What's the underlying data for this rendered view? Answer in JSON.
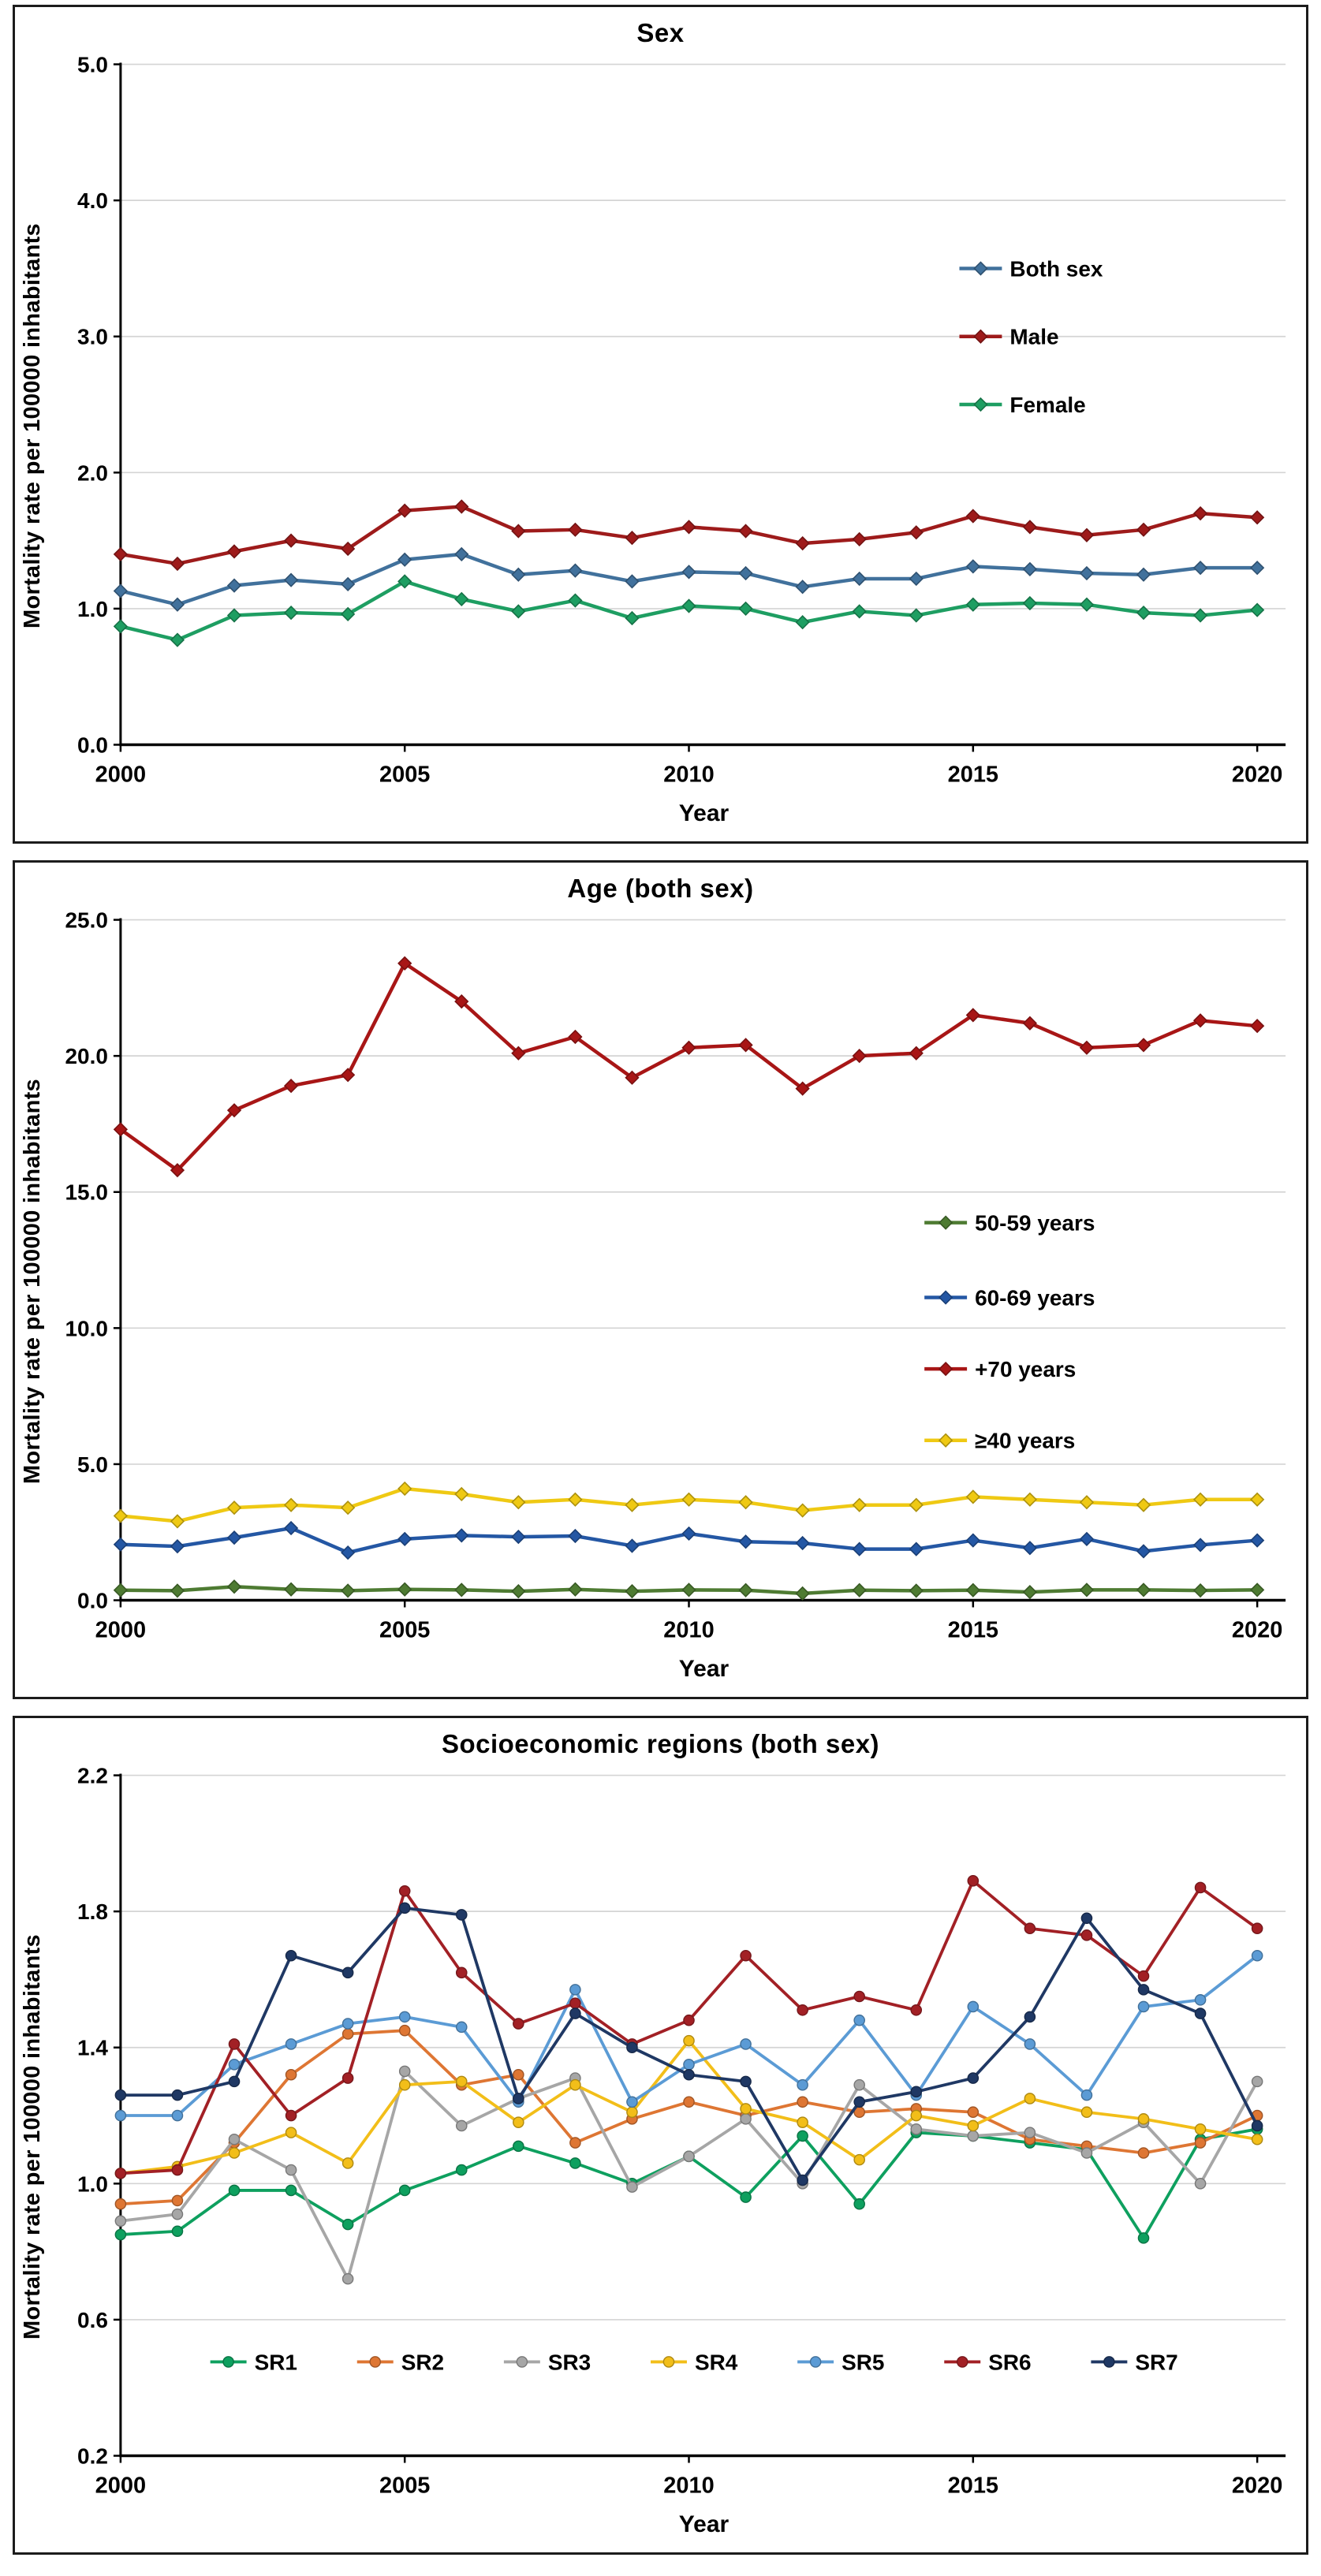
{
  "y_axis_label": "Mortality rate per 100000 inhabitants",
  "x_axis_label": "Year",
  "years": [
    2000,
    2001,
    2002,
    2003,
    2004,
    2005,
    2006,
    2007,
    2008,
    2009,
    2010,
    2011,
    2012,
    2013,
    2014,
    2015,
    2016,
    2017,
    2018,
    2019,
    2020
  ],
  "x_ticks": [
    {
      "v": 2000,
      "label": "2000"
    },
    {
      "v": 2005,
      "label": "2005"
    },
    {
      "v": 2010,
      "label": "2010"
    },
    {
      "v": 2015,
      "label": "2015"
    },
    {
      "v": 2020,
      "label": "2020"
    }
  ],
  "chart_data": [
    {
      "type": "line",
      "title": "Sex",
      "xlabel": "Year",
      "ylabel": "Mortality rate per 100000 inhabitants",
      "ylim": [
        0,
        5
      ],
      "grid": "horizontal",
      "legend_position": "inside-right",
      "y_ticks": [
        {
          "v": 0,
          "label": "0.0"
        },
        {
          "v": 1,
          "label": "1.0"
        },
        {
          "v": 2,
          "label": "2.0"
        },
        {
          "v": 3,
          "label": "3.0"
        },
        {
          "v": 4,
          "label": "4.0"
        },
        {
          "v": 5,
          "label": "5.0"
        }
      ],
      "series": [
        {
          "name": "Both sex",
          "color": "#41719C",
          "values": [
            1.13,
            1.03,
            1.17,
            1.21,
            1.18,
            1.36,
            1.4,
            1.25,
            1.28,
            1.2,
            1.27,
            1.26,
            1.16,
            1.22,
            1.22,
            1.31,
            1.29,
            1.26,
            1.25,
            1.3,
            1.3
          ]
        },
        {
          "name": "Male",
          "color": "#9E1B1B",
          "values": [
            1.4,
            1.33,
            1.42,
            1.5,
            1.44,
            1.72,
            1.75,
            1.57,
            1.58,
            1.52,
            1.6,
            1.57,
            1.48,
            1.51,
            1.56,
            1.68,
            1.6,
            1.54,
            1.58,
            1.7,
            1.67
          ]
        },
        {
          "name": "Female",
          "color": "#1E9E62",
          "values": [
            0.87,
            0.77,
            0.95,
            0.97,
            0.96,
            1.2,
            1.07,
            0.98,
            1.06,
            0.93,
            1.02,
            1.0,
            0.9,
            0.98,
            0.95,
            1.03,
            1.04,
            1.03,
            0.97,
            0.95,
            0.99
          ]
        }
      ]
    },
    {
      "type": "line",
      "title": "Age (both sex)",
      "xlabel": "Year",
      "ylabel": "Mortality rate per 100000 inhabitants",
      "ylim": [
        0,
        25
      ],
      "grid": "horizontal",
      "legend_position": "inside-right",
      "y_ticks": [
        {
          "v": 0,
          "label": "0.0"
        },
        {
          "v": 5,
          "label": "5.0"
        },
        {
          "v": 10,
          "label": "10.0"
        },
        {
          "v": 15,
          "label": "15.0"
        },
        {
          "v": 20,
          "label": "20.0"
        },
        {
          "v": 25,
          "label": "25.0"
        }
      ],
      "series": [
        {
          "name": "50-59 years",
          "color": "#4E7B32",
          "values": [
            0.37,
            0.35,
            0.5,
            0.4,
            0.35,
            0.4,
            0.38,
            0.33,
            0.4,
            0.33,
            0.38,
            0.37,
            0.25,
            0.37,
            0.35,
            0.37,
            0.3,
            0.38,
            0.38,
            0.36,
            0.38
          ]
        },
        {
          "name": "60-69 years",
          "color": "#2457A4",
          "values": [
            2.05,
            1.98,
            2.3,
            2.65,
            1.75,
            2.25,
            2.38,
            2.33,
            2.36,
            2.0,
            2.45,
            2.15,
            2.1,
            1.88,
            1.88,
            2.2,
            1.92,
            2.25,
            1.8,
            2.03,
            2.2
          ]
        },
        {
          "name": "+70 years",
          "color": "#A81616",
          "values": [
            17.3,
            15.8,
            18.0,
            18.9,
            19.3,
            23.4,
            22.0,
            20.1,
            20.7,
            19.2,
            20.3,
            20.4,
            18.8,
            20.0,
            20.1,
            21.5,
            21.2,
            20.3,
            20.4,
            21.3,
            21.1
          ]
        },
        {
          "name": "≥40 years",
          "color": "#EFC913",
          "values": [
            3.1,
            2.9,
            3.4,
            3.5,
            3.4,
            4.1,
            3.9,
            3.6,
            3.7,
            3.5,
            3.7,
            3.6,
            3.3,
            3.5,
            3.5,
            3.8,
            3.7,
            3.6,
            3.5,
            3.7,
            3.7
          ]
        }
      ]
    },
    {
      "type": "line",
      "title": "Socioeconomic regions (both sex)",
      "xlabel": "Year",
      "ylabel": "Mortality rate per 100000 inhabitants",
      "ylim": [
        0.2,
        2.2
      ],
      "grid": "horizontal",
      "legend_position": "inside-bottom",
      "y_ticks": [
        {
          "v": 0.2,
          "label": "0.2"
        },
        {
          "v": 0.6,
          "label": "0.6"
        },
        {
          "v": 1.0,
          "label": "1.0"
        },
        {
          "v": 1.4,
          "label": "1.4"
        },
        {
          "v": 1.8,
          "label": "1.8"
        },
        {
          "v": 2.2,
          "label": "2.2"
        }
      ],
      "series": [
        {
          "name": "SR1",
          "color": "#0EA05F",
          "values": [
            0.85,
            0.86,
            0.98,
            0.98,
            0.88,
            0.98,
            1.04,
            1.11,
            1.06,
            1.0,
            1.08,
            0.96,
            1.14,
            0.94,
            1.15,
            1.14,
            1.12,
            1.1,
            0.84,
            1.13,
            1.16
          ]
        },
        {
          "name": "SR2",
          "color": "#DE7633",
          "values": [
            0.94,
            0.95,
            1.12,
            1.32,
            1.44,
            1.45,
            1.29,
            1.32,
            1.12,
            1.19,
            1.24,
            1.2,
            1.24,
            1.21,
            1.22,
            1.21,
            1.13,
            1.11,
            1.09,
            1.12,
            1.2
          ]
        },
        {
          "name": "SR3",
          "color": "#A6A6A6",
          "values": [
            0.89,
            0.91,
            1.13,
            1.04,
            0.72,
            1.33,
            1.17,
            1.25,
            1.31,
            0.99,
            1.08,
            1.19,
            1.0,
            1.29,
            1.16,
            1.14,
            1.15,
            1.09,
            1.18,
            1.0,
            1.3
          ]
        },
        {
          "name": "SR4",
          "color": "#F2BE19",
          "values": [
            1.03,
            1.05,
            1.09,
            1.15,
            1.06,
            1.29,
            1.3,
            1.18,
            1.29,
            1.21,
            1.42,
            1.22,
            1.18,
            1.07,
            1.2,
            1.17,
            1.25,
            1.21,
            1.19,
            1.16,
            1.13
          ]
        },
        {
          "name": "SR5",
          "color": "#5B9BD5",
          "values": [
            1.2,
            1.2,
            1.35,
            1.41,
            1.47,
            1.49,
            1.46,
            1.24,
            1.57,
            1.24,
            1.35,
            1.41,
            1.29,
            1.48,
            1.26,
            1.52,
            1.41,
            1.26,
            1.52,
            1.54,
            1.67
          ]
        },
        {
          "name": "SR6",
          "color": "#A22025",
          "values": [
            1.03,
            1.04,
            1.41,
            1.2,
            1.31,
            1.86,
            1.62,
            1.47,
            1.53,
            1.41,
            1.48,
            1.67,
            1.51,
            1.55,
            1.51,
            1.89,
            1.75,
            1.73,
            1.61,
            1.87,
            1.75
          ]
        },
        {
          "name": "SR7",
          "color": "#1F3864",
          "values": [
            1.26,
            1.26,
            1.3,
            1.67,
            1.62,
            1.81,
            1.79,
            1.25,
            1.5,
            1.4,
            1.32,
            1.3,
            1.01,
            1.24,
            1.27,
            1.31,
            1.49,
            1.78,
            1.57,
            1.5,
            1.17
          ]
        }
      ]
    }
  ]
}
